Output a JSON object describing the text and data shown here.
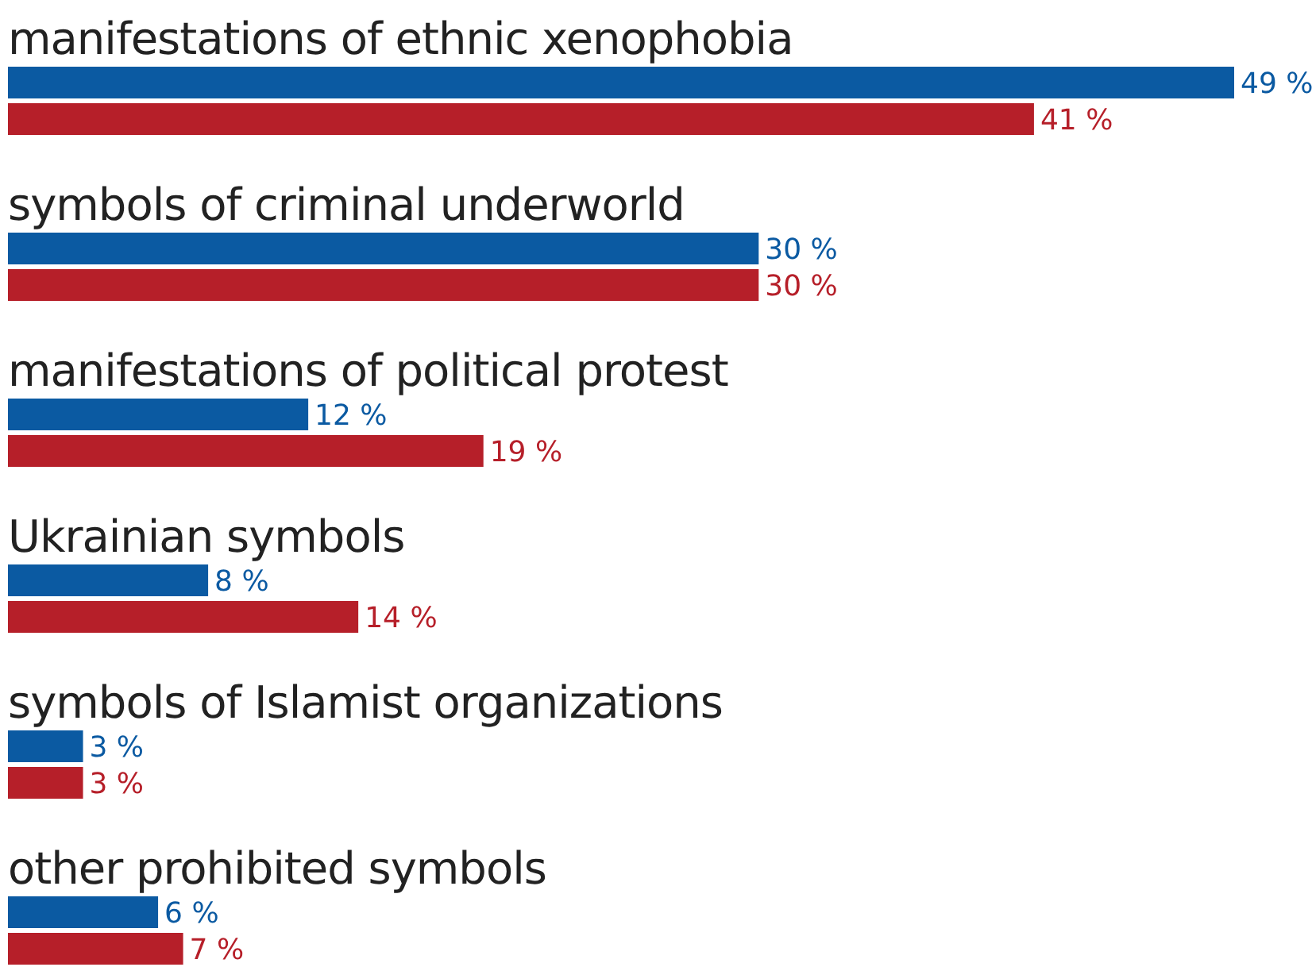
{
  "chart_data": {
    "type": "bar",
    "orientation": "horizontal",
    "categories": [
      "manifestations of ethnic xenophobia",
      "symbols of criminal underworld",
      "manifestations of political protest",
      "Ukrainian symbols",
      "symbols of Islamist organizations",
      "other prohibited symbols"
    ],
    "series": [
      {
        "color": "#0b5aa2",
        "values": [
          49,
          30,
          12,
          8,
          3,
          6
        ],
        "value_labels": [
          "49 %",
          "30 %",
          "12 %",
          "8 %",
          "3 %",
          "6 %"
        ]
      },
      {
        "color": "#b61f29",
        "values": [
          41,
          30,
          19,
          14,
          3,
          7
        ],
        "value_labels": [
          "41 %",
          "30 %",
          "19 %",
          "14 %",
          "3 %",
          "7 %"
        ]
      }
    ]
  }
}
